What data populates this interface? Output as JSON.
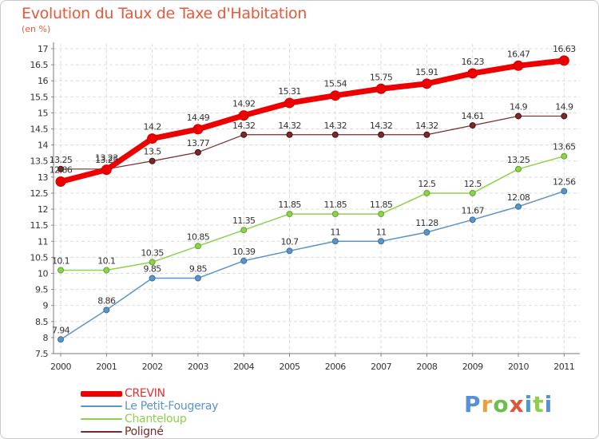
{
  "title": "Evolution du Taux de Taxe d'Habitation",
  "subtitle": "(en %)",
  "logo_text": "Proxiti",
  "logo_colors": [
    "#5a8fd8",
    "#e8a13a",
    "#6cbf4a",
    "#e0553a",
    "#4a9ad8",
    "#8ccf4a",
    "#5a8fd8"
  ],
  "chart_data": {
    "type": "line",
    "title": "Evolution du Taux de Taxe d'Habitation",
    "ylabel": "(en %)",
    "x": [
      "2000",
      "2001",
      "2002",
      "2003",
      "2004",
      "2005",
      "2006",
      "2007",
      "2008",
      "2009",
      "2010",
      "2011"
    ],
    "ylim": [
      7.5,
      17
    ],
    "yticks": [
      "7.5",
      "8",
      "8.5",
      "9",
      "9.5",
      "10",
      "10.5",
      "11",
      "11.5",
      "12",
      "12.5",
      "13",
      "13.5",
      "14",
      "14.5",
      "15",
      "15.5",
      "16",
      "16.5",
      "17"
    ],
    "grid": true,
    "legend_position": "bottom-left",
    "series": [
      {
        "name": "CREVIN",
        "color": "#ee0000",
        "values": [
          12.86,
          13.23,
          14.2,
          14.49,
          14.92,
          15.31,
          15.54,
          15.75,
          15.91,
          16.23,
          16.47,
          16.63
        ],
        "labels": [
          "12.86",
          "13.23",
          "14.2",
          "14.49",
          "14.92",
          "15.31",
          "15.54",
          "15.75",
          "15.91",
          "16.23",
          "16.47",
          "16.63"
        ]
      },
      {
        "name": "Le Petit-Fougeray",
        "color": "#5b94c8",
        "values": [
          7.94,
          8.86,
          9.85,
          9.85,
          10.39,
          10.7,
          11,
          11,
          11.28,
          11.67,
          12.08,
          12.56
        ],
        "labels": [
          "7.94",
          "8.86",
          "9.85",
          "9.85",
          "10.39",
          "10.7",
          "11",
          "11",
          "11.28",
          "11.67",
          "12.08",
          "12.56"
        ]
      },
      {
        "name": "Chanteloup",
        "color": "#8ed14a",
        "values": [
          10.1,
          10.1,
          10.35,
          10.85,
          11.35,
          11.85,
          11.85,
          11.85,
          12.5,
          12.5,
          13.25,
          13.65
        ],
        "labels": [
          "10.1",
          "10.1",
          "10.35",
          "10.85",
          "11.35",
          "11.85",
          "11.85",
          "11.85",
          "12.5",
          "12.5",
          "13.25",
          "13.65"
        ]
      },
      {
        "name": "Poligné",
        "color": "#7a2a2a",
        "values": [
          13.25,
          13.25,
          13.5,
          13.77,
          14.32,
          14.32,
          14.32,
          14.32,
          14.32,
          14.61,
          14.9,
          14.9
        ],
        "labels": [
          "13.25",
          "13.25",
          "13.5",
          "13.77",
          "14.32",
          "14.32",
          "14.32",
          "14.32",
          "14.32",
          "14.61",
          "14.9",
          "14.9"
        ]
      }
    ]
  }
}
